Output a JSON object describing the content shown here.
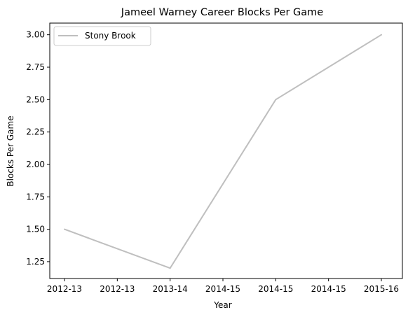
{
  "chart_data": {
    "type": "line",
    "title": "Jameel Warney Career Blocks Per Game",
    "xlabel": "Year",
    "ylabel": "Blocks Per Game",
    "x_ticks": [
      "2012-13",
      "2012-13",
      "2013-14",
      "2014-15",
      "2014-15",
      "2014-15",
      "2015-16"
    ],
    "y_ticks": [
      "1.25",
      "1.50",
      "1.75",
      "2.00",
      "2.25",
      "2.50",
      "2.75",
      "3.00"
    ],
    "ylim": [
      1.12,
      3.09
    ],
    "grid": false,
    "legend_position": "top-left",
    "series": [
      {
        "name": "Stony Brook",
        "color": "#bfbfbf",
        "x": [
          "2012-13",
          "2013-14",
          "2014-15",
          "2015-16"
        ],
        "values": [
          1.5,
          1.2,
          2.5,
          3.0
        ]
      }
    ]
  }
}
